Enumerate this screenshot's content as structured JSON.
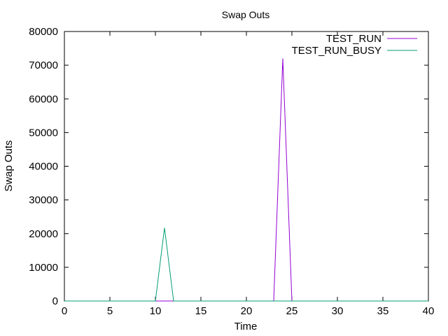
{
  "chart_data": {
    "type": "line",
    "title": "Swap Outs",
    "xlabel": "Time",
    "ylabel": "Swap Outs",
    "xlim": [
      0,
      40
    ],
    "ylim": [
      0,
      80000
    ],
    "x_ticks": [
      "0",
      "5",
      "10",
      "15",
      "20",
      "25",
      "30",
      "35",
      "40"
    ],
    "y_ticks": [
      "0",
      "10000",
      "20000",
      "30000",
      "40000",
      "50000",
      "60000",
      "70000",
      "80000"
    ],
    "grid": false,
    "legend_position": "top-right",
    "series": [
      {
        "name": "TEST_RUN",
        "color": "#9400d3",
        "x": [
          0,
          23,
          24,
          25,
          40
        ],
        "y": [
          0,
          0,
          72000,
          0,
          0
        ]
      },
      {
        "name": "TEST_RUN_BUSY",
        "color": "#009e73",
        "x": [
          0,
          10,
          11,
          12,
          40
        ],
        "y": [
          0,
          0,
          21700,
          0,
          0
        ]
      }
    ]
  }
}
